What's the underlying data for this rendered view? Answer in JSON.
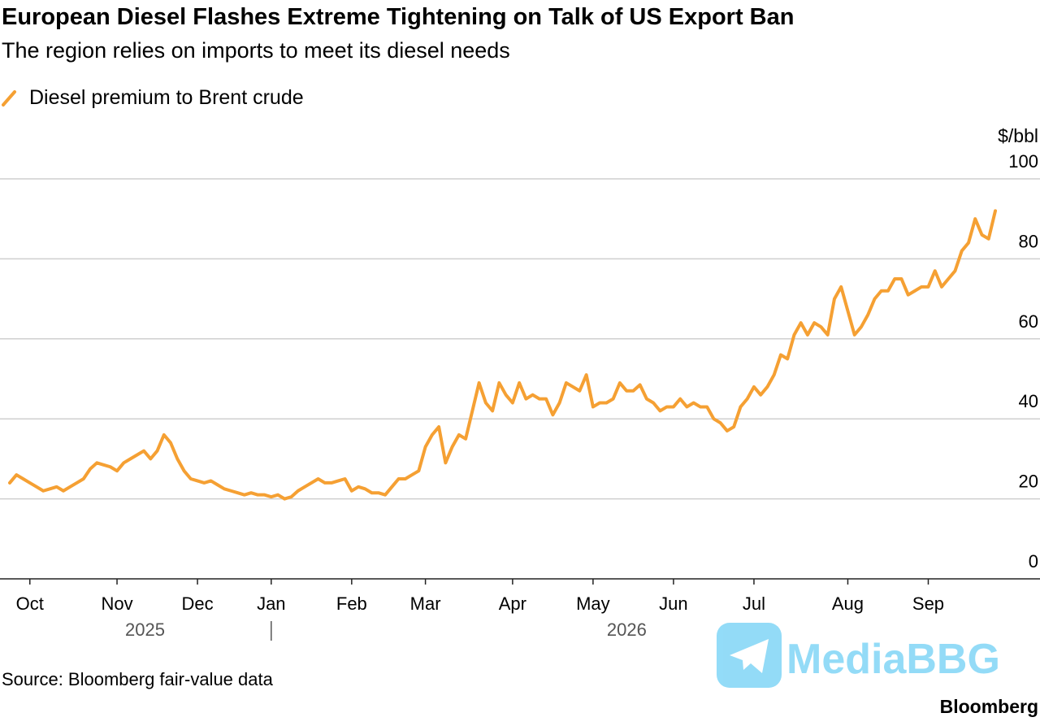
{
  "chart_data": {
    "type": "line",
    "title": "European Diesel Flashes Extreme Tightening on Talk of US Export Ban",
    "subtitle": "The region relies on imports to meet its diesel needs",
    "y_unit": "$/bbl",
    "source": "Source: Bloomberg fair-value data",
    "brand": "Bloomberg",
    "watermark": "MediaBBG",
    "x_year_labels": [
      "2025",
      "2026"
    ],
    "categories": [
      null,
      null,
      null,
      "Oct",
      null,
      null,
      null,
      null,
      null,
      null,
      null,
      null,
      null,
      null,
      null,
      null,
      "Nov",
      null,
      null,
      null,
      null,
      null,
      null,
      null,
      null,
      null,
      null,
      null,
      "Dec",
      null,
      null,
      null,
      null,
      null,
      null,
      null,
      null,
      null,
      null,
      "Jan",
      null,
      null,
      null,
      null,
      null,
      null,
      null,
      null,
      null,
      null,
      null,
      "Feb",
      null,
      null,
      null,
      null,
      null,
      null,
      null,
      null,
      null,
      null,
      "Mar",
      null,
      null,
      null,
      null,
      null,
      null,
      null,
      null,
      null,
      null,
      null,
      null,
      "Apr",
      null,
      null,
      null,
      null,
      null,
      null,
      null,
      null,
      null,
      null,
      null,
      "May",
      null,
      null,
      null,
      null,
      null,
      null,
      null,
      null,
      null,
      null,
      null,
      "Jun",
      null,
      null,
      null,
      null,
      null,
      null,
      null,
      null,
      null,
      null,
      null,
      "Jul",
      null,
      null,
      null,
      null,
      null,
      null,
      null,
      null,
      null,
      null,
      null,
      null,
      null,
      "Aug",
      null,
      null,
      null,
      null,
      null,
      null,
      null,
      null,
      null,
      null,
      null,
      "Sep",
      null,
      null,
      null,
      null,
      null,
      null,
      null,
      null,
      null,
      null
    ],
    "series": [
      {
        "name": "Diesel premium to Brent crude",
        "color": "#f5a033",
        "values": [
          24,
          26,
          25,
          24,
          23,
          22,
          22.5,
          23,
          22,
          23,
          24,
          25,
          27.5,
          29,
          28.5,
          28,
          27,
          29,
          30,
          31,
          32,
          30,
          32,
          36,
          34,
          30,
          27,
          25,
          24.5,
          24,
          24.5,
          23.5,
          22.5,
          22,
          21.5,
          21,
          21.5,
          21,
          21,
          20.5,
          21,
          20,
          20.5,
          22,
          23,
          24,
          25,
          24,
          24,
          24.5,
          25,
          22,
          23,
          22.5,
          21.5,
          21.5,
          21,
          23,
          25,
          25,
          26,
          27,
          33,
          36,
          38,
          29,
          33,
          36,
          35,
          42,
          49,
          44,
          42,
          49,
          46,
          44,
          49,
          45,
          46,
          45,
          45,
          41,
          44,
          49,
          48,
          47,
          51,
          43,
          44,
          44,
          45,
          49,
          47,
          47,
          48.5,
          45,
          44,
          42,
          43,
          43,
          45,
          43,
          44,
          43,
          43,
          40,
          39,
          37,
          38,
          43,
          45,
          48,
          46,
          48,
          51,
          56,
          55,
          61,
          64,
          61,
          64,
          63,
          61,
          70,
          73,
          67,
          61,
          63,
          66,
          70,
          72,
          72,
          75,
          75,
          71,
          72,
          73,
          73,
          77,
          73,
          75,
          77,
          82,
          84,
          90,
          86,
          85,
          92
        ]
      }
    ],
    "ylim": [
      0,
      100
    ],
    "yticks": [
      0,
      20,
      40,
      60,
      80,
      100
    ],
    "grid": true
  }
}
